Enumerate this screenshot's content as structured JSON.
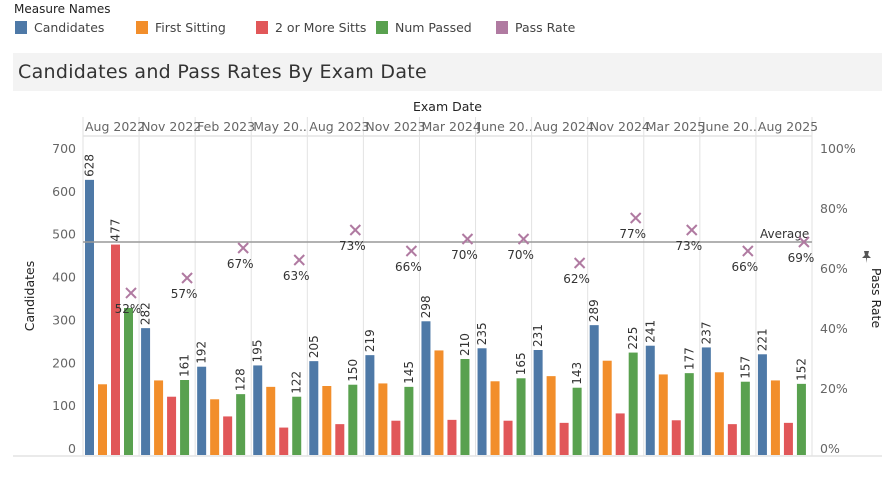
{
  "legend": {
    "title": "Measure Names",
    "items": [
      {
        "label": "Candidates",
        "color": "#4e79a7"
      },
      {
        "label": "First Sitting",
        "color": "#f28e2b"
      },
      {
        "label": "2 or More Sitts",
        "color": "#e15759"
      },
      {
        "label": "Num Passed",
        "color": "#59a14f"
      },
      {
        "label": "Pass Rate",
        "color": "#b07aa1"
      }
    ]
  },
  "chart_data": {
    "type": "bar",
    "title": "Candidates and Pass Rates By Exam Date",
    "xlabel": "Exam Date",
    "ylabel": "Candidates",
    "y2label": "Pass Rate",
    "ylim": [
      0,
      700
    ],
    "yticks": [
      "0",
      "100",
      "200",
      "300",
      "400",
      "500",
      "600",
      "700"
    ],
    "y2lim": [
      0,
      100
    ],
    "y2ticks": [
      "0%",
      "20%",
      "40%",
      "60%",
      "80%",
      "100%"
    ],
    "categories": [
      "Aug 2022",
      "Nov 2022",
      "Feb 2023",
      "May 20..",
      "Aug 2023",
      "Nov 2023",
      "Mar 2024",
      "June 20..",
      "Aug 2024",
      "Nov 2024",
      "Mar 2025",
      "June 20..",
      "Aug 2025"
    ],
    "series": [
      {
        "name": "Candidates",
        "color": "#4e79a7",
        "values": [
          628,
          282,
          192,
          195,
          205,
          219,
          298,
          235,
          231,
          289,
          241,
          237,
          221
        ],
        "labels": [
          "628",
          "282",
          "192",
          "195",
          "205",
          "219",
          "298",
          "235",
          "231",
          "289",
          "241",
          "237",
          "221"
        ]
      },
      {
        "name": "First Sitting",
        "color": "#f28e2b",
        "values": [
          151,
          160,
          116,
          145,
          147,
          153,
          230,
          158,
          170,
          206,
          174,
          179,
          160
        ]
      },
      {
        "name": "2 or More Sitts",
        "color": "#e15759",
        "values": [
          477,
          122,
          76,
          50,
          58,
          66,
          68,
          66,
          61,
          83,
          67,
          58,
          61
        ],
        "labels": [
          "477",
          "",
          "",
          "",
          "",
          "",
          "",
          "",
          "",
          "",
          "",
          "",
          ""
        ]
      },
      {
        "name": "Num Passed",
        "color": "#59a14f",
        "values": [
          329,
          161,
          128,
          122,
          150,
          145,
          210,
          165,
          143,
          225,
          177,
          157,
          152
        ],
        "labels": [
          "",
          "161",
          "128",
          "122",
          "150",
          "145",
          "210",
          "165",
          "143",
          "225",
          "177",
          "157",
          "152"
        ]
      }
    ],
    "pass_rate": {
      "name": "Pass Rate",
      "color": "#b07aa1",
      "values": [
        52,
        57,
        67,
        63,
        73,
        66,
        70,
        70,
        62,
        77,
        73,
        66,
        69
      ],
      "labels": [
        "52%",
        "57%",
        "67%",
        "63%",
        "73%",
        "66%",
        "70%",
        "70%",
        "62%",
        "77%",
        "73%",
        "66%",
        "69%"
      ]
    },
    "reference_line": {
      "label": "Average",
      "value": 483
    }
  }
}
